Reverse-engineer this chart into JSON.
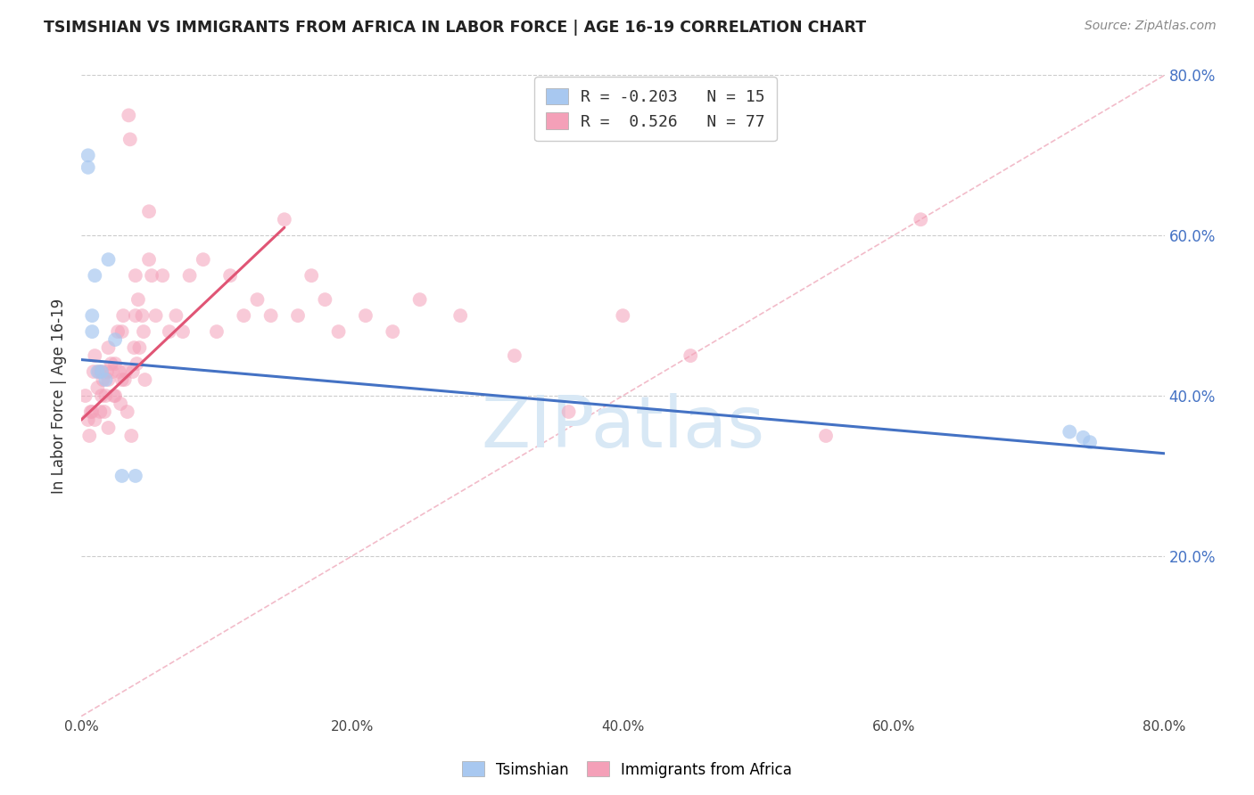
{
  "title": "TSIMSHIAN VS IMMIGRANTS FROM AFRICA IN LABOR FORCE | AGE 16-19 CORRELATION CHART",
  "source_text": "Source: ZipAtlas.com",
  "ylabel": "In Labor Force | Age 16-19",
  "xlim": [
    0.0,
    0.8
  ],
  "ylim": [
    0.0,
    0.8
  ],
  "xtick_vals": [
    0.0,
    0.2,
    0.4,
    0.6,
    0.8
  ],
  "ytick_vals": [
    0.2,
    0.4,
    0.6,
    0.8
  ],
  "tsimshian_color": "#a8c8f0",
  "africa_color": "#f4a0b8",
  "tsimshian_line_color": "#4472c4",
  "africa_line_color": "#e05575",
  "diagonal_line_color": "#f0b0c0",
  "background_color": "#ffffff",
  "grid_color": "#cccccc",
  "watermark_color": "#d8e8f5",
  "tsimshian_R": -0.203,
  "tsimshian_N": 15,
  "africa_R": 0.526,
  "africa_N": 77,
  "tsimshian_line_x0": 0.0,
  "tsimshian_line_y0": 0.445,
  "tsimshian_line_x1": 0.8,
  "tsimshian_line_y1": 0.328,
  "africa_line_x0": 0.0,
  "africa_line_y0": 0.37,
  "africa_line_x1": 0.15,
  "africa_line_y1": 0.61,
  "tsimshian_scatter_x": [
    0.005,
    0.005,
    0.008,
    0.008,
    0.01,
    0.012,
    0.015,
    0.018,
    0.02,
    0.025,
    0.03,
    0.04,
    0.73,
    0.74,
    0.745
  ],
  "tsimshian_scatter_y": [
    0.7,
    0.685,
    0.5,
    0.48,
    0.55,
    0.43,
    0.43,
    0.42,
    0.57,
    0.47,
    0.3,
    0.3,
    0.355,
    0.348,
    0.342
  ],
  "africa_scatter_x": [
    0.003,
    0.005,
    0.006,
    0.007,
    0.008,
    0.009,
    0.01,
    0.01,
    0.012,
    0.013,
    0.014,
    0.015,
    0.015,
    0.016,
    0.017,
    0.018,
    0.019,
    0.02,
    0.02,
    0.02,
    0.022,
    0.023,
    0.024,
    0.025,
    0.025,
    0.027,
    0.028,
    0.029,
    0.03,
    0.03,
    0.031,
    0.032,
    0.033,
    0.034,
    0.035,
    0.036,
    0.037,
    0.038,
    0.039,
    0.04,
    0.04,
    0.041,
    0.042,
    0.043,
    0.045,
    0.046,
    0.047,
    0.05,
    0.05,
    0.052,
    0.055,
    0.06,
    0.065,
    0.07,
    0.075,
    0.08,
    0.09,
    0.1,
    0.11,
    0.12,
    0.13,
    0.14,
    0.15,
    0.16,
    0.17,
    0.18,
    0.19,
    0.21,
    0.23,
    0.25,
    0.28,
    0.32,
    0.36,
    0.4,
    0.45,
    0.55,
    0.62
  ],
  "africa_scatter_y": [
    0.4,
    0.37,
    0.35,
    0.38,
    0.38,
    0.43,
    0.45,
    0.37,
    0.41,
    0.43,
    0.38,
    0.43,
    0.4,
    0.42,
    0.38,
    0.4,
    0.43,
    0.46,
    0.42,
    0.36,
    0.44,
    0.43,
    0.4,
    0.44,
    0.4,
    0.48,
    0.43,
    0.39,
    0.48,
    0.42,
    0.5,
    0.42,
    0.43,
    0.38,
    0.75,
    0.72,
    0.35,
    0.43,
    0.46,
    0.55,
    0.5,
    0.44,
    0.52,
    0.46,
    0.5,
    0.48,
    0.42,
    0.63,
    0.57,
    0.55,
    0.5,
    0.55,
    0.48,
    0.5,
    0.48,
    0.55,
    0.57,
    0.48,
    0.55,
    0.5,
    0.52,
    0.5,
    0.62,
    0.5,
    0.55,
    0.52,
    0.48,
    0.5,
    0.48,
    0.52,
    0.5,
    0.45,
    0.38,
    0.5,
    0.45,
    0.35,
    0.62
  ]
}
